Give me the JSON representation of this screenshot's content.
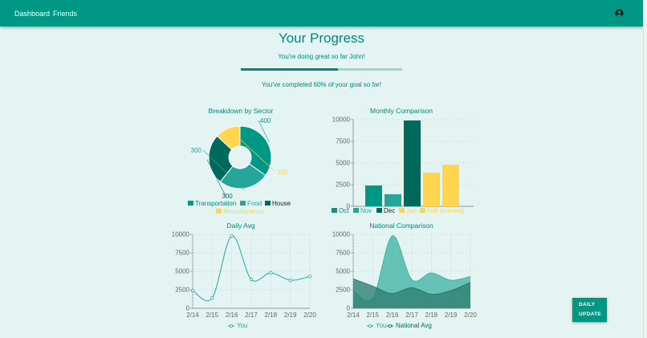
{
  "nav": {
    "items": [
      "Dashboard",
      "Friends"
    ]
  },
  "header": {
    "title": "Your Progress",
    "subtitle": "You're doing great so far John!"
  },
  "progress": {
    "value": 0.6,
    "text": "You've completed 60% of your goal so far!"
  },
  "colors": {
    "primary": "#009784",
    "teal": "#00897b",
    "mid": "#26a69a",
    "dark": "#00695c",
    "yellow": "#ffd54f",
    "background": "#e3f4f2"
  },
  "icons": {
    "account": "account-circle-icon"
  },
  "action": {
    "label_line1": "DAILY",
    "label_line2": "UPDATE"
  },
  "chart_data": [
    {
      "type": "pie",
      "title": "Breakdown by Sector",
      "categories": [
        "Transportation",
        "Food",
        "House",
        "Miscellaneous"
      ],
      "values": [
        400,
        300,
        300,
        150
      ],
      "labels": [
        "400",
        "300",
        "300",
        "150"
      ],
      "colors": [
        "#009784",
        "#26a69a",
        "#00695c",
        "#ffd54f"
      ],
      "legend": "bottom"
    },
    {
      "type": "bar",
      "title": "Monthly Comparison",
      "categories": [
        "Oct",
        "Nov",
        "Dec",
        "Jan",
        "Feb (current)"
      ],
      "values": [
        2400,
        1400,
        9900,
        3900,
        4800
      ],
      "colors": [
        "#009784",
        "#26a69a",
        "#00695c",
        "#ffd54f",
        "#ffd54f"
      ],
      "yticks": [
        "0",
        "2500",
        "5000",
        "7500",
        "10000"
      ],
      "ylim": [
        0,
        10000
      ],
      "grid": true,
      "legend": "bottom"
    },
    {
      "type": "line",
      "title": "Daily Avg",
      "categories": [
        "2/14",
        "2/15",
        "2/16",
        "2/17",
        "2/18",
        "2/19",
        "2/20"
      ],
      "series": [
        {
          "name": "You",
          "values": [
            2400,
            1400,
            9800,
            3900,
            4800,
            3800,
            4300
          ]
        }
      ],
      "yticks": [
        "0",
        "2500",
        "5000",
        "7500",
        "10000"
      ],
      "ylim": [
        0,
        10000
      ],
      "grid": true,
      "legend": "bottom"
    },
    {
      "type": "area",
      "title": "National Comparison",
      "categories": [
        "2/14",
        "2/15",
        "2/16",
        "2/17",
        "2/18",
        "2/19",
        "2/20"
      ],
      "series": [
        {
          "name": "You",
          "values": [
            2400,
            1400,
            9800,
            3900,
            4800,
            3800,
            4300
          ]
        },
        {
          "name": "National Avg",
          "values": [
            4000,
            3000,
            2000,
            2800,
            1900,
            2400,
            3500
          ]
        }
      ],
      "yticks": [
        "0",
        "2500",
        "5000",
        "7500",
        "10000"
      ],
      "ylim": [
        0,
        10000
      ],
      "grid": true,
      "legend": "bottom"
    }
  ]
}
